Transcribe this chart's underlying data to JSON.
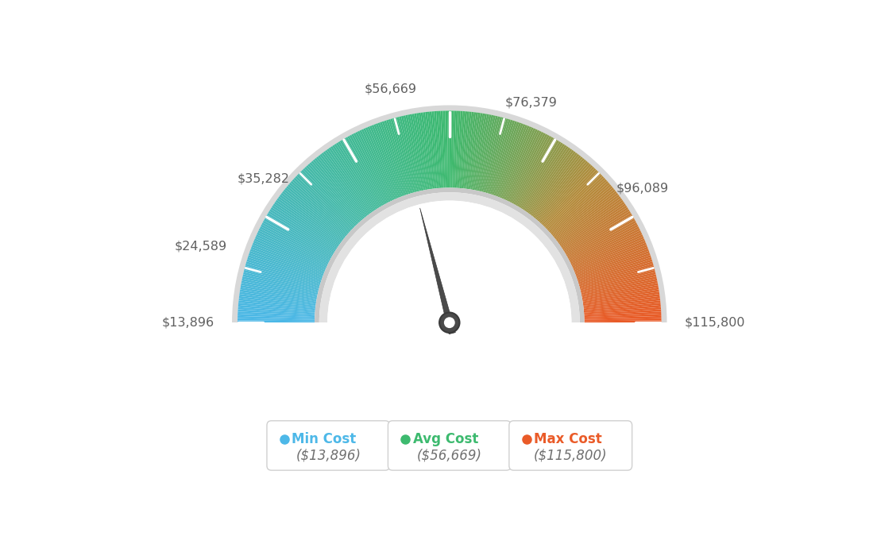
{
  "min_val": 13896,
  "max_val": 115800,
  "avg_val": 56669,
  "labels": [
    "$13,896",
    "$24,589",
    "$35,282",
    "$56,669",
    "$76,379",
    "$96,089",
    "$115,800"
  ],
  "label_values": [
    13896,
    24589,
    35282,
    56669,
    76379,
    96089,
    115800
  ],
  "legend": [
    {
      "label": "Min Cost",
      "value": "($13,896)",
      "color": "#4db8e8"
    },
    {
      "label": "Avg Cost",
      "value": "($56,669)",
      "color": "#3dba6f"
    },
    {
      "label": "Max Cost",
      "value": "($115,800)",
      "color": "#ea5b28"
    }
  ],
  "bg_color": "#ffffff",
  "needle_value": 56669,
  "color_stops": [
    [
      0.0,
      [
        77,
        184,
        232
      ]
    ],
    [
      0.5,
      [
        61,
        186,
        111
      ]
    ],
    [
      0.75,
      [
        180,
        140,
        60
      ]
    ],
    [
      1.0,
      [
        234,
        91,
        40
      ]
    ]
  ]
}
